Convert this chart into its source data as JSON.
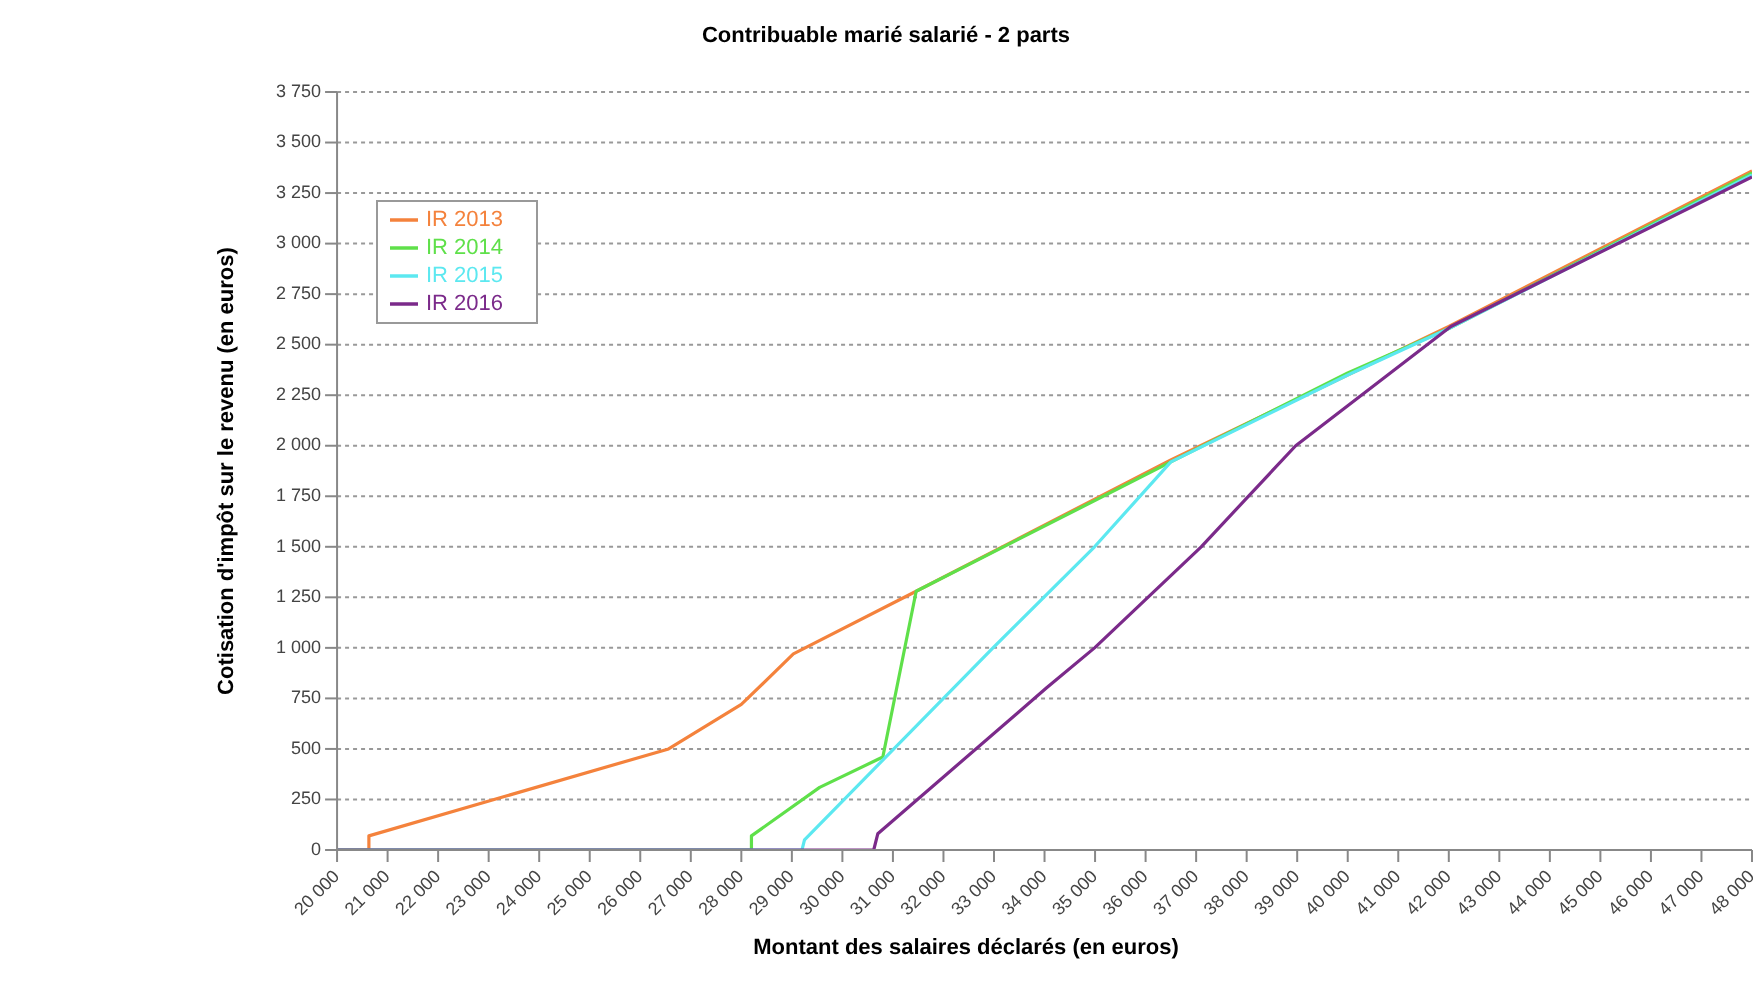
{
  "chart_data": {
    "type": "line",
    "title": "Contribuable marié salarié - 2 parts",
    "xlabel": "Montant des salaires déclarés (en euros)",
    "ylabel": "Cotisation d'impôt sur le revenu (en euros)",
    "xlim": [
      20000,
      48000
    ],
    "xticks": [
      {
        "value": 20000,
        "label": "20 000"
      },
      {
        "value": 21000,
        "label": "21 000"
      },
      {
        "value": 22000,
        "label": "22 000"
      },
      {
        "value": 23000,
        "label": "23 000"
      },
      {
        "value": 24000,
        "label": "24 000"
      },
      {
        "value": 25000,
        "label": "25 000"
      },
      {
        "value": 26000,
        "label": "26 000"
      },
      {
        "value": 27000,
        "label": "27 000"
      },
      {
        "value": 28000,
        "label": "28 000"
      },
      {
        "value": 29000,
        "label": "29 000"
      },
      {
        "value": 30000,
        "label": "30 000"
      },
      {
        "value": 31000,
        "label": "31 000"
      },
      {
        "value": 32000,
        "label": "32 000"
      },
      {
        "value": 33000,
        "label": "33 000"
      },
      {
        "value": 34000,
        "label": "34 000"
      },
      {
        "value": 35000,
        "label": "35 000"
      },
      {
        "value": 36000,
        "label": "36 000"
      },
      {
        "value": 37000,
        "label": "37 000"
      },
      {
        "value": 38000,
        "label": "38 000"
      },
      {
        "value": 39000,
        "label": "39 000"
      },
      {
        "value": 40000,
        "label": "40 000"
      },
      {
        "value": 41000,
        "label": "41 000"
      },
      {
        "value": 42000,
        "label": "42 000"
      },
      {
        "value": 43000,
        "label": "43 000"
      },
      {
        "value": 44000,
        "label": "44 000"
      },
      {
        "value": 45000,
        "label": "45 000"
      },
      {
        "value": 46000,
        "label": "46 000"
      },
      {
        "value": 47000,
        "label": "47 000"
      },
      {
        "value": 48000,
        "label": "48 000"
      }
    ],
    "ylim": [
      0,
      3750
    ],
    "yticks": [
      0,
      250,
      500,
      750,
      {
        "value": 1000,
        "label": "1 000"
      },
      {
        "value": 1250,
        "label": "1 250"
      },
      {
        "value": 1500,
        "label": "1 500"
      },
      {
        "value": 1750,
        "label": "1 750"
      },
      {
        "value": 2000,
        "label": "2 000"
      },
      {
        "value": 2250,
        "label": "2 250"
      },
      {
        "value": 2500,
        "label": "2 500"
      },
      {
        "value": 2750,
        "label": "2 750"
      },
      {
        "value": 3000,
        "label": "3 000"
      },
      {
        "value": 3250,
        "label": "3 250"
      },
      {
        "value": 3500,
        "label": "3 500"
      },
      {
        "value": 3750,
        "label": "3 750"
      }
    ],
    "grid": "y",
    "legend": "top left",
    "marker": "none",
    "line_style": "solid",
    "series": [
      {
        "name": "IR 2013",
        "color": "#f4823c",
        "x": [
          20000,
          20630,
          20630,
          26560,
          28000,
          29030,
          31460,
          36500,
          42000,
          48000
        ],
        "values": [
          0,
          0,
          70,
          500,
          720,
          970,
          1280,
          1930,
          2590,
          3360
        ]
      },
      {
        "name": "IR 2014",
        "color": "#5fe04a",
        "x": [
          20000,
          28200,
          28200,
          29550,
          30800,
          31460,
          36500,
          40000,
          42000,
          48000
        ],
        "values": [
          0,
          0,
          70,
          310,
          460,
          1280,
          1920,
          2360,
          2580,
          3350
        ]
      },
      {
        "name": "IR 2015",
        "color": "#5ce8f0",
        "x": [
          20000,
          29200,
          29250,
          32980,
          34990,
          36500,
          40000,
          42000,
          48000
        ],
        "values": [
          0,
          0,
          50,
          1000,
          1500,
          1920,
          2350,
          2580,
          3340
        ]
      },
      {
        "name": "IR 2016",
        "color": "#7b2a8a",
        "x": [
          20000,
          30620,
          30700,
          34030,
          34990,
          37100,
          38970,
          42040,
          48000
        ],
        "values": [
          0,
          0,
          80,
          800,
          1000,
          1500,
          2000,
          2590,
          3330
        ]
      }
    ]
  }
}
